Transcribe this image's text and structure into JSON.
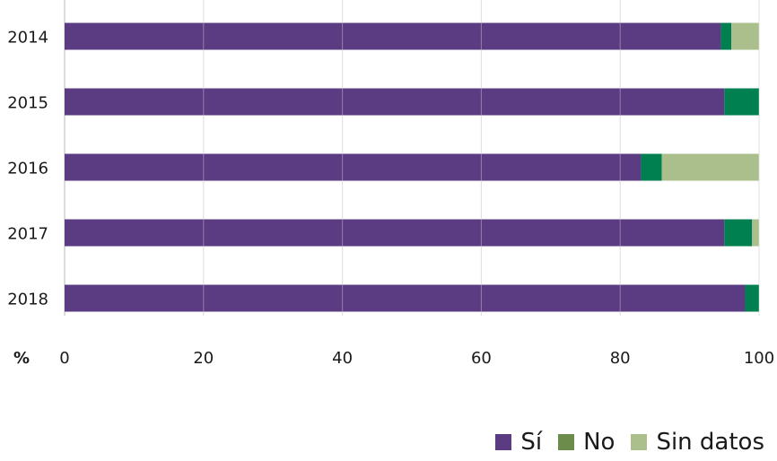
{
  "chart_data": {
    "type": "bar",
    "orientation": "horizontal",
    "stacked": true,
    "categories": [
      "2014",
      "2015",
      "2016",
      "2017",
      "2018"
    ],
    "series": [
      {
        "name": "Sí",
        "color": "#5b3b81",
        "values": [
          94.5,
          95,
          83,
          95,
          98
        ]
      },
      {
        "name": "No",
        "color": "#008050",
        "values": [
          1.5,
          5,
          3,
          4,
          2
        ]
      },
      {
        "name": "Sin datos",
        "color": "#aabf8c",
        "values": [
          4,
          0,
          14,
          1,
          0
        ]
      }
    ],
    "xlim": [
      0,
      100
    ],
    "xticks": [
      "0",
      "20",
      "40",
      "60",
      "80",
      "100"
    ],
    "xunit_label": "%",
    "grid": "vertical",
    "legend_position": "bottom-right",
    "legend_colors": {
      "Sí": "#5b3b81",
      "No": "#6b8c4a",
      "Sin datos": "#aabf8c"
    }
  }
}
